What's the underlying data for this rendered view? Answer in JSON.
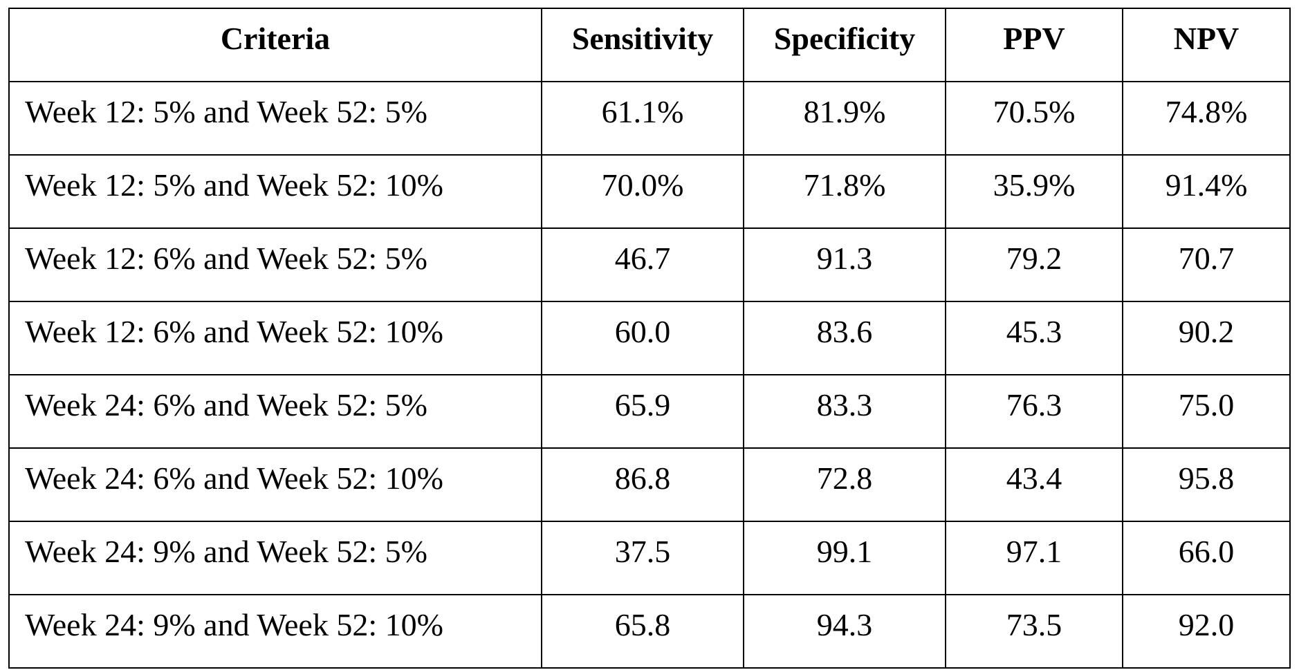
{
  "table": {
    "headers": {
      "criteria": "Criteria",
      "sensitivity": "Sensitivity",
      "specificity": "Specificity",
      "ppv": "PPV",
      "npv": "NPV"
    },
    "rows": [
      {
        "criteria": "Week 12: 5% and Week 52: 5%",
        "sensitivity": "61.1%",
        "specificity": "81.9%",
        "ppv": "70.5%",
        "npv": "74.8%"
      },
      {
        "criteria": "Week 12: 5% and Week 52: 10%",
        "sensitivity": "70.0%",
        "specificity": "71.8%",
        "ppv": "35.9%",
        "npv": "91.4%"
      },
      {
        "criteria": "Week 12: 6% and Week 52: 5%",
        "sensitivity": "46.7",
        "specificity": "91.3",
        "ppv": "79.2",
        "npv": "70.7"
      },
      {
        "criteria": "Week 12: 6% and Week 52: 10%",
        "sensitivity": "60.0",
        "specificity": "83.6",
        "ppv": "45.3",
        "npv": "90.2"
      },
      {
        "criteria": "Week 24: 6% and Week 52: 5%",
        "sensitivity": "65.9",
        "specificity": "83.3",
        "ppv": "76.3",
        "npv": "75.0"
      },
      {
        "criteria": "Week 24: 6% and Week 52: 10%",
        "sensitivity": "86.8",
        "specificity": "72.8",
        "ppv": "43.4",
        "npv": "95.8"
      },
      {
        "criteria": "Week 24: 9% and Week 52: 5%",
        "sensitivity": "37.5",
        "specificity": "99.1",
        "ppv": "97.1",
        "npv": "66.0"
      },
      {
        "criteria": "Week 24: 9% and Week 52: 10%",
        "sensitivity": "65.8",
        "specificity": "94.3",
        "ppv": "73.5",
        "npv": "92.0"
      }
    ]
  }
}
